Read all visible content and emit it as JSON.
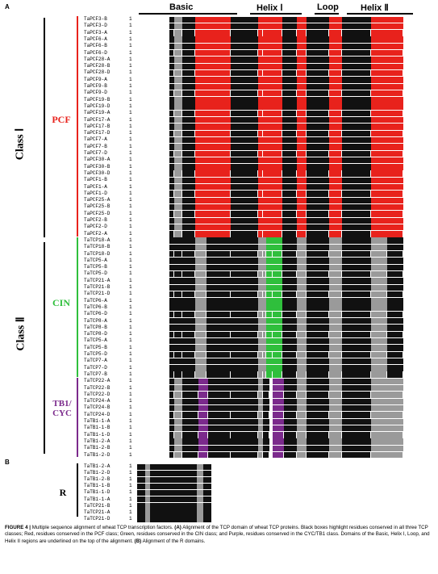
{
  "figure": {
    "panel_a": "A",
    "panel_b": "B",
    "domains": {
      "basic": "Basic",
      "helix1": "Helix Ⅰ",
      "loop": "Loop",
      "helix2": "Helix Ⅱ"
    },
    "class1": "Class Ⅰ",
    "class2": "Class Ⅱ",
    "group_pcf": "PCF",
    "group_cin": "CIN",
    "group_tb1": "TB1/",
    "group_cyc": "CYC",
    "group_r": "R",
    "colors": {
      "pcf": "#e8221c",
      "cin": "#2fbf3c",
      "tb1": "#7b2a8c",
      "conserved": "#111111",
      "similar": "#9a9a9a",
      "r_label": "#000000"
    },
    "panel_a_sequences": [
      {
        "name": "TaPCF3-B",
        "num": "1",
        "group": "pcf"
      },
      {
        "name": "TaPCF3-D",
        "num": "1",
        "group": "pcf"
      },
      {
        "name": "TaPCF3-A",
        "num": "1",
        "group": "pcf"
      },
      {
        "name": "TaPCF6-A",
        "num": "1",
        "group": "pcf"
      },
      {
        "name": "TaPCF6-B",
        "num": "1",
        "group": "pcf"
      },
      {
        "name": "TaPCF6-D",
        "num": "1",
        "group": "pcf"
      },
      {
        "name": "TaPCF28-A",
        "num": "1",
        "group": "pcf"
      },
      {
        "name": "TaPCF28-B",
        "num": "1",
        "group": "pcf"
      },
      {
        "name": "TaPCF28-D",
        "num": "1",
        "group": "pcf"
      },
      {
        "name": "TaPCF9-A",
        "num": "1",
        "group": "pcf"
      },
      {
        "name": "TaPCF9-B",
        "num": "1",
        "group": "pcf"
      },
      {
        "name": "TaPCF9-D",
        "num": "1",
        "group": "pcf"
      },
      {
        "name": "TaPCF19-B",
        "num": "1",
        "group": "pcf"
      },
      {
        "name": "TaPCF19-D",
        "num": "1",
        "group": "pcf"
      },
      {
        "name": "TaPCF19-A",
        "num": "1",
        "group": "pcf"
      },
      {
        "name": "TaPCF17-A",
        "num": "1",
        "group": "pcf"
      },
      {
        "name": "TaPCF17-B",
        "num": "1",
        "group": "pcf"
      },
      {
        "name": "TaPCF17-D",
        "num": "1",
        "group": "pcf"
      },
      {
        "name": "TaPCF7-A",
        "num": "1",
        "group": "pcf"
      },
      {
        "name": "TaPCF7-B",
        "num": "1",
        "group": "pcf"
      },
      {
        "name": "TaPCF7-D",
        "num": "1",
        "group": "pcf"
      },
      {
        "name": "TaPCF30-A",
        "num": "1",
        "group": "pcf"
      },
      {
        "name": "TaPCF30-B",
        "num": "1",
        "group": "pcf"
      },
      {
        "name": "TaPCF30-D",
        "num": "1",
        "group": "pcf"
      },
      {
        "name": "TaPCF1-B",
        "num": "1",
        "group": "pcf"
      },
      {
        "name": "TaPCF1-A",
        "num": "1",
        "group": "pcf"
      },
      {
        "name": "TaPCF1-D",
        "num": "1",
        "group": "pcf"
      },
      {
        "name": "TaPCF25-A",
        "num": "1",
        "group": "pcf"
      },
      {
        "name": "TaPCF25-B",
        "num": "1",
        "group": "pcf"
      },
      {
        "name": "TaPCF25-D",
        "num": "1",
        "group": "pcf"
      },
      {
        "name": "TaPCF2-B",
        "num": "1",
        "group": "pcf"
      },
      {
        "name": "TaPCF2-D",
        "num": "1",
        "group": "pcf"
      },
      {
        "name": "TaPCF2-A",
        "num": "1",
        "group": "pcf"
      },
      {
        "name": "TaTCP18-A",
        "num": "1",
        "group": "cin"
      },
      {
        "name": "TaTCP18-B",
        "num": "1",
        "group": "cin"
      },
      {
        "name": "TaTCP18-D",
        "num": "1",
        "group": "cin"
      },
      {
        "name": "TaTCP5-A",
        "num": "1",
        "group": "cin"
      },
      {
        "name": "TaTCP5-B",
        "num": "1",
        "group": "cin"
      },
      {
        "name": "TaTCP5-D",
        "num": "1",
        "group": "cin"
      },
      {
        "name": "TaTCP21-A",
        "num": "1",
        "group": "cin"
      },
      {
        "name": "TaTCP21-B",
        "num": "1",
        "group": "cin"
      },
      {
        "name": "TaTCP21-D",
        "num": "1",
        "group": "cin"
      },
      {
        "name": "TaTCP6-A",
        "num": "1",
        "group": "cin"
      },
      {
        "name": "TaTCP6-B",
        "num": "1",
        "group": "cin"
      },
      {
        "name": "TaTCP6-D",
        "num": "1",
        "group": "cin"
      },
      {
        "name": "TaTCP8-A",
        "num": "1",
        "group": "cin"
      },
      {
        "name": "TaTCP8-B",
        "num": "1",
        "group": "cin"
      },
      {
        "name": "TaTCP8-D",
        "num": "1",
        "group": "cin"
      },
      {
        "name": "TaTCP5-A",
        "num": "1",
        "group": "cin"
      },
      {
        "name": "TaTCP5-B",
        "num": "1",
        "group": "cin"
      },
      {
        "name": "TaTCP5-D",
        "num": "1",
        "group": "cin"
      },
      {
        "name": "TaTCP7-A",
        "num": "1",
        "group": "cin"
      },
      {
        "name": "TaTCP7-D",
        "num": "1",
        "group": "cin"
      },
      {
        "name": "TaTCP7-B",
        "num": "1",
        "group": "cin"
      },
      {
        "name": "TaTCP22-A",
        "num": "1",
        "group": "tb1"
      },
      {
        "name": "TaTCP22-B",
        "num": "1",
        "group": "tb1"
      },
      {
        "name": "TaTCP22-D",
        "num": "1",
        "group": "tb1"
      },
      {
        "name": "TaTCP24-A",
        "num": "1",
        "group": "tb1"
      },
      {
        "name": "TaTCP24-B",
        "num": "1",
        "group": "tb1"
      },
      {
        "name": "TaTCP24-D",
        "num": "1",
        "group": "tb1"
      },
      {
        "name": "TaTB1-1-A",
        "num": "1",
        "group": "tb1"
      },
      {
        "name": "TaTB1-1-B",
        "num": "1",
        "group": "tb1"
      },
      {
        "name": "TaTB1-1-D",
        "num": "1",
        "group": "tb1"
      },
      {
        "name": "TaTB1-2-A",
        "num": "1",
        "group": "tb1"
      },
      {
        "name": "TaTB1-2-B",
        "num": "1",
        "group": "tb1"
      },
      {
        "name": "TaTB1-2-D",
        "num": "1",
        "group": "tb1"
      }
    ],
    "panel_b_sequences": [
      {
        "name": "TaTB1-2-A",
        "num": "1"
      },
      {
        "name": "TaTB1-2-D",
        "num": "1"
      },
      {
        "name": "TaTB1-2-B",
        "num": "1"
      },
      {
        "name": "TaTB1-1-B",
        "num": "1"
      },
      {
        "name": "TaTB1-1-D",
        "num": "1"
      },
      {
        "name": "TaTB1-1-A",
        "num": "1"
      },
      {
        "name": "TaTCP21-B",
        "num": "1"
      },
      {
        "name": "TaTCP21-A",
        "num": "1"
      },
      {
        "name": "TaTCP21-D",
        "num": "1"
      }
    ],
    "caption": {
      "title": "FIGURE 4 |",
      "text1": " Multiple sequence alignment of wheat TCP transcription factors. ",
      "a_label": "(A)",
      "text2": " Alignment of the TCP domain of wheat TCP proteins. Black boxes highlight residues conserved in all three TCP classes; Red, residues conserved in the PCF class; Green, residues conserved in the CIN class; and Purple, residues conserved in the CYC/TB1 class. Domains of the Basic, Helix I, Loop, and Helix II regions are underlined on the top of the alignment. ",
      "b_label": "(B)",
      "text3": " Alignment of the R domains."
    }
  }
}
